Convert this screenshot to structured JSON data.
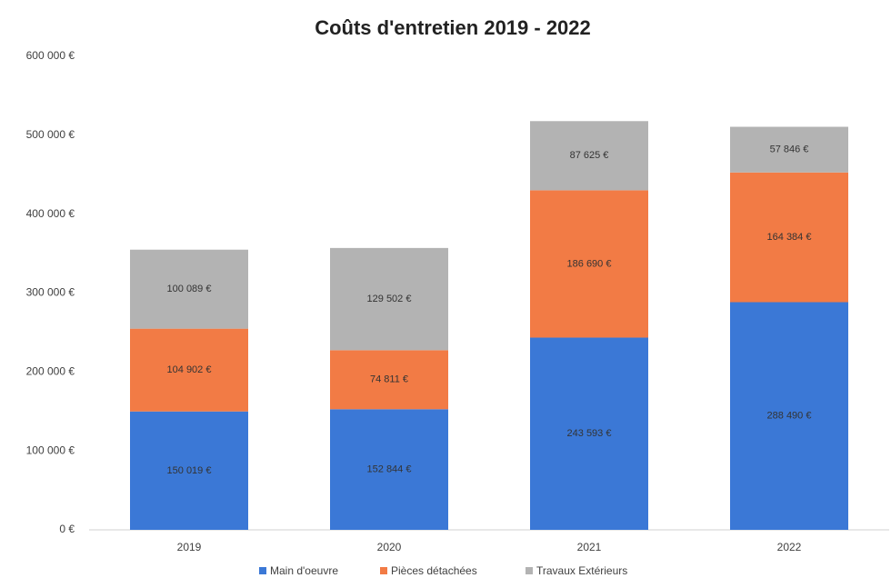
{
  "chart_data": {
    "type": "stacked_bar",
    "title": "Coûts d'entretien 2019 - 2022",
    "categories": [
      "2019",
      "2020",
      "2021",
      "2022"
    ],
    "series": [
      {
        "name": "Main d'oeuvre",
        "color": "#3b78d6",
        "values": [
          150019,
          152844,
          243593,
          288490
        ],
        "value_labels": [
          "150 019 €",
          "152 844 €",
          "243 593 €",
          "288 490 €"
        ]
      },
      {
        "name": "Pièces détachées",
        "color": "#f27b45",
        "values": [
          104902,
          74811,
          186690,
          164384
        ],
        "value_labels": [
          "104 902 €",
          "74 811 €",
          "186 690 €",
          "164 384 €"
        ]
      },
      {
        "name": "Travaux Extérieurs",
        "color": "#b3b3b3",
        "values": [
          100089,
          129502,
          87625,
          57846
        ],
        "value_labels": [
          "100 089 €",
          "129 502 €",
          "87 625 €",
          "57 846 €"
        ]
      }
    ],
    "ylim": [
      0,
      600000
    ],
    "yticks": [
      {
        "value": 0,
        "label": "0 €"
      },
      {
        "value": 100000,
        "label": "100 000 €"
      },
      {
        "value": 200000,
        "label": "200 000 €"
      },
      {
        "value": 300000,
        "label": "300 000 €"
      },
      {
        "value": 400000,
        "label": "400 000 €"
      },
      {
        "value": 500000,
        "label": "500 000 €"
      },
      {
        "value": 600000,
        "label": "600 000 €"
      }
    ],
    "legend": "bottom"
  }
}
